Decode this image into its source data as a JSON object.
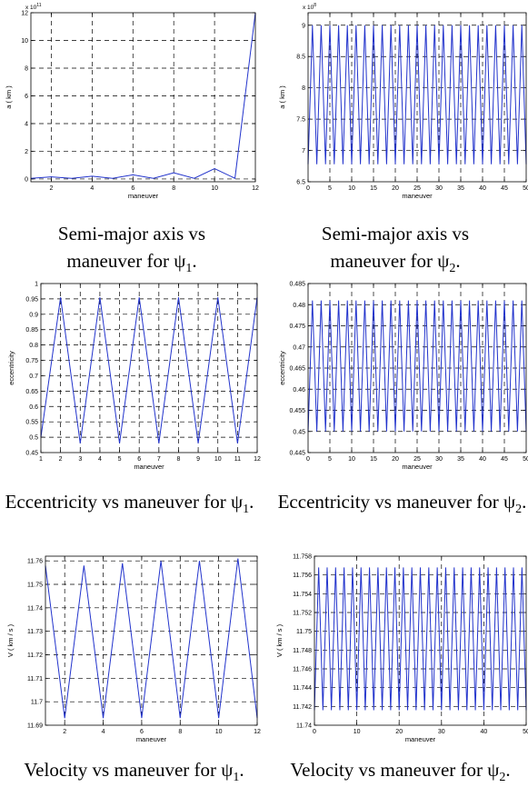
{
  "captions": [
    {
      "prefix": "Semi-major axis vs maneuver for ",
      "sym": "ψ",
      "sub": "1",
      "end": "."
    },
    {
      "prefix": "Semi-major axis vs maneuver for ",
      "sym": "ψ",
      "sub": "2",
      "end": "."
    },
    {
      "prefix": "Eccentricity vs maneuver for ",
      "sym": "ψ",
      "sub": "1",
      "end": "."
    },
    {
      "prefix": "Eccentricity vs maneuver for ",
      "sym": "ψ",
      "sub": "2",
      "end": "."
    },
    {
      "prefix": "Velocity vs maneuver for ",
      "sym": "ψ",
      "sub": "1",
      "end": "."
    },
    {
      "prefix": "Velocity vs maneuver for ",
      "sym": "ψ",
      "sub": "2",
      "end": "."
    }
  ],
  "chart_data": [
    {
      "type": "line",
      "title": "",
      "xlabel": "maneuver",
      "ylabel": "a ( km )",
      "exponent_label": "x 10",
      "exponent_power": "11",
      "xlim": [
        1,
        12
      ],
      "ylim": [
        -0.2,
        12
      ],
      "xticks": [
        2,
        4,
        6,
        8,
        10,
        12
      ],
      "yticks": [
        0,
        2,
        4,
        6,
        8,
        10,
        12
      ],
      "grid": true,
      "color": "#2233cc",
      "x": [
        1,
        2,
        3,
        4,
        5,
        6,
        7,
        8,
        9,
        10,
        11,
        12
      ],
      "y": [
        0.05,
        0.15,
        0.05,
        0.2,
        0.05,
        0.3,
        0.05,
        0.45,
        0.05,
        0.75,
        0.05,
        12
      ]
    },
    {
      "type": "line",
      "title": "",
      "xlabel": "maneuver",
      "ylabel": "a ( km )",
      "exponent_label": "x 10",
      "exponent_power": "8",
      "xlim": [
        0,
        50
      ],
      "ylim": [
        6.5,
        9.2
      ],
      "xticks": [
        0,
        5,
        10,
        15,
        20,
        25,
        30,
        35,
        40,
        45,
        50
      ],
      "yticks": [
        6.5,
        7,
        7.5,
        8,
        8.5,
        9
      ],
      "grid": true,
      "color": "#2233cc",
      "pattern": {
        "n": 50,
        "low": 6.78,
        "high": 9.0
      }
    },
    {
      "type": "line",
      "title": "",
      "xlabel": "maneuver",
      "ylabel": "eccentricity",
      "xlim": [
        1,
        12
      ],
      "ylim": [
        0.45,
        1.0
      ],
      "xticks": [
        1,
        2,
        3,
        4,
        5,
        6,
        7,
        8,
        9,
        10,
        11,
        12
      ],
      "yticks": [
        0.45,
        0.5,
        0.55,
        0.6,
        0.65,
        0.7,
        0.75,
        0.8,
        0.85,
        0.9,
        0.95,
        1
      ],
      "grid": true,
      "color": "#2233cc",
      "x": [
        1,
        2,
        3,
        4,
        5,
        6,
        7,
        8,
        9,
        10,
        11,
        12
      ],
      "y": [
        0.5,
        0.955,
        0.48,
        0.955,
        0.48,
        0.955,
        0.48,
        0.955,
        0.48,
        0.955,
        0.48,
        0.955
      ]
    },
    {
      "type": "line",
      "title": "",
      "xlabel": "maneuver",
      "ylabel": "eccentricity",
      "xlim": [
        0,
        50
      ],
      "ylim": [
        0.445,
        0.485
      ],
      "xticks": [
        0,
        5,
        10,
        15,
        20,
        25,
        30,
        35,
        40,
        45,
        50
      ],
      "yticks": [
        0.445,
        0.45,
        0.455,
        0.46,
        0.465,
        0.47,
        0.475,
        0.48,
        0.485
      ],
      "grid": true,
      "color": "#2233cc",
      "pattern": {
        "n": 50,
        "low": 0.45,
        "high": 0.481
      }
    },
    {
      "type": "line",
      "title": "",
      "xlabel": "maneuver",
      "ylabel": "V ( km / s )",
      "xlim": [
        1,
        12
      ],
      "ylim": [
        11.69,
        11.762
      ],
      "xticks": [
        2,
        4,
        6,
        8,
        10,
        12
      ],
      "yticks": [
        11.69,
        11.7,
        11.71,
        11.72,
        11.73,
        11.74,
        11.75,
        11.76
      ],
      "grid": true,
      "color": "#2233cc",
      "x": [
        1,
        2,
        3,
        4,
        5,
        6,
        7,
        8,
        9,
        10,
        11,
        12
      ],
      "y": [
        11.758,
        11.693,
        11.758,
        11.693,
        11.759,
        11.693,
        11.76,
        11.693,
        11.76,
        11.693,
        11.761,
        11.693
      ]
    },
    {
      "type": "line",
      "title": "",
      "xlabel": "maneuver",
      "ylabel": "V ( km / s )",
      "xlim": [
        0,
        50
      ],
      "ylim": [
        11.74,
        11.758
      ],
      "xticks": [
        0,
        10,
        20,
        30,
        40,
        50
      ],
      "yticks": [
        11.74,
        11.742,
        11.744,
        11.746,
        11.748,
        11.75,
        11.752,
        11.754,
        11.756,
        11.758
      ],
      "grid": true,
      "color": "#2233cc",
      "pattern": {
        "n": 50,
        "low": 11.7416,
        "high": 11.7568
      }
    }
  ]
}
